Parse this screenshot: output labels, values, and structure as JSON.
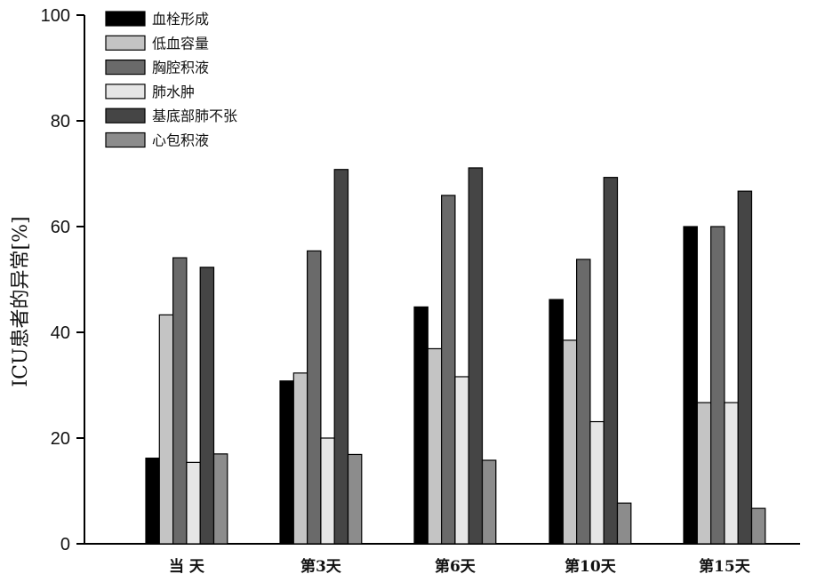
{
  "chart_data": {
    "type": "bar",
    "ylabel": "ICU患者的异常[%]",
    "xlabel": "",
    "ylim": [
      0,
      100
    ],
    "yticks": [
      0,
      20,
      40,
      60,
      80,
      100
    ],
    "grid": false,
    "legend_position": "top-left",
    "categories": [
      "当 天",
      "第3天",
      "第6天",
      "第10天",
      "第15天"
    ],
    "series": [
      {
        "name": "血栓形成",
        "color": "#000000",
        "values": [
          16.2,
          30.8,
          44.8,
          46.2,
          60.0
        ]
      },
      {
        "name": "低血容量",
        "color": "#c4c4c4",
        "values": [
          43.3,
          32.3,
          36.9,
          38.5,
          26.7
        ]
      },
      {
        "name": "胸腔积液",
        "color": "#6a6a6a",
        "values": [
          54.1,
          55.4,
          65.9,
          53.8,
          60.0
        ]
      },
      {
        "name": "肺水肿",
        "color": "#e6e6e6",
        "values": [
          15.4,
          20.0,
          31.6,
          23.1,
          26.7
        ]
      },
      {
        "name": "基底部肺不张",
        "color": "#454545",
        "values": [
          52.3,
          70.8,
          71.1,
          69.3,
          66.7
        ]
      },
      {
        "name": "心包积液",
        "color": "#8c8c8c",
        "values": [
          17.0,
          16.9,
          15.8,
          7.7,
          6.7
        ]
      }
    ]
  }
}
